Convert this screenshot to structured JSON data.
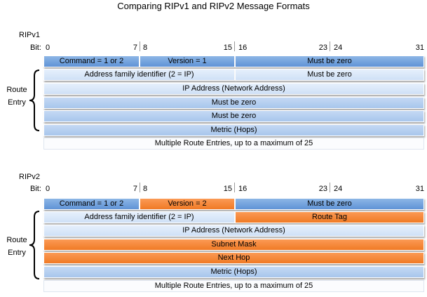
{
  "title": "Comparing RIPv1 and RIPv2 Message Formats",
  "bit_label": "Bit:",
  "bit_numbers": {
    "b0": "0",
    "b7": "7",
    "b8": "8",
    "b15": "15",
    "b16": "16",
    "b23": "23",
    "b24": "24",
    "b31": "31"
  },
  "route_entry_label": {
    "line1": "Route",
    "line2": "Entry"
  },
  "ripv1": {
    "label": "RIPv1",
    "command": "Command = 1 or 2",
    "version": "Version = 1",
    "header_mbz": "Must be zero",
    "afi": "Address family identifier (2 = IP)",
    "afi_mbz": "Must be zero",
    "ip": "IP Address (Network Address)",
    "mbz1": "Must be zero",
    "mbz2": "Must be zero",
    "metric": "Metric (Hops)",
    "multi": "Multiple Route Entries, up to a maximum of 25"
  },
  "ripv2": {
    "label": "RIPv2",
    "command": "Command = 1 or 2",
    "version": "Version = 2",
    "header_mbz": "Must be zero",
    "afi": "Address family identifier (2 = IP)",
    "route_tag": "Route Tag",
    "ip": "IP Address (Network Address)",
    "subnet": "Subnet Mask",
    "nexthop": "Next Hop",
    "metric": "Metric (Hops)",
    "multi": "Multiple Route Entries, up to a maximum of 25"
  },
  "colors": {
    "header_blue": "#6a9ddb",
    "entry_blue": "#b6d0f0",
    "light_blue": "#dce9f9",
    "changed_orange": "#f58a3c"
  }
}
